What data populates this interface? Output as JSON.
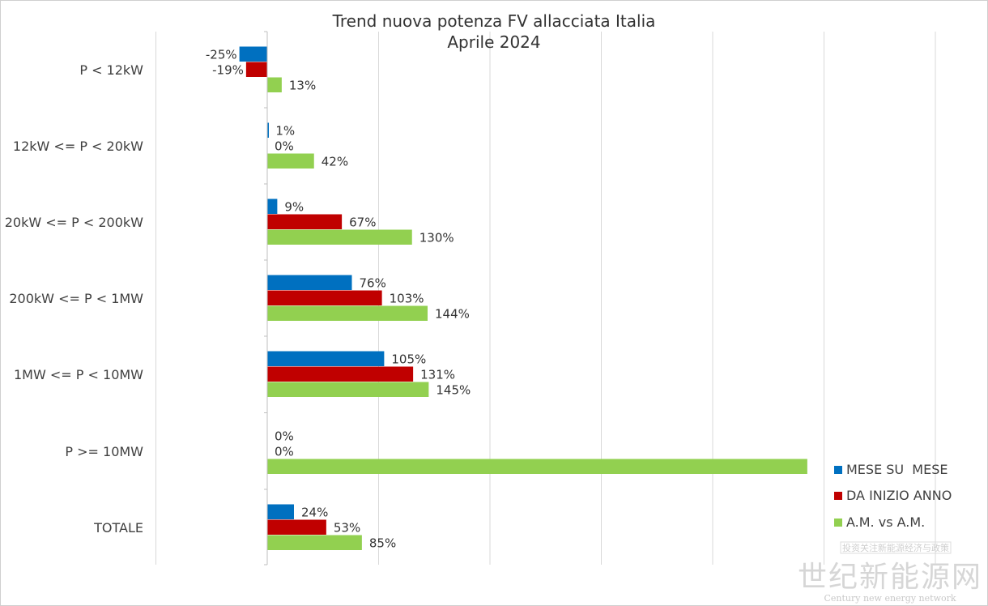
{
  "chart_data": {
    "type": "bar",
    "orientation": "horizontal",
    "title": [
      "Trend nuova potenza FV allacciata Italia",
      "Aprile 2024"
    ],
    "categories": [
      "P < 12kW",
      "12kW <= P < 20kW",
      "20kW <= P < 200kW",
      "200kW <= P < 1MW",
      "1MW <= P < 10MW",
      "P >= 10MW",
      "TOTALE"
    ],
    "series": [
      {
        "name": "MESE SU  MESE",
        "color": "#0070c0",
        "values": [
          -25,
          1,
          9,
          76,
          105,
          0,
          24
        ],
        "labels": [
          "-25%",
          "1%",
          "9%",
          "76%",
          "105%",
          "0%",
          "24%"
        ]
      },
      {
        "name": "DA INIZIO ANNO",
        "color": "#c00000",
        "values": [
          -19,
          0,
          67,
          103,
          131,
          0,
          53
        ],
        "labels": [
          "-19%",
          "0%",
          "67%",
          "103%",
          "131%",
          "0%",
          "53%"
        ]
      },
      {
        "name": "A.M. vs A.M.",
        "color": "#92d050",
        "values": [
          13,
          42,
          130,
          144,
          145,
          485,
          85
        ],
        "labels": [
          "13%",
          "42%",
          "130%",
          "144%",
          "145%",
          "",
          "85%"
        ]
      }
    ],
    "xlim": [
      -100,
      600
    ],
    "grid": true,
    "legend_position": "bottom-right"
  },
  "watermark": {
    "top_text": "投资关注新能源经济与政策",
    "main_text": "世纪新能源网",
    "sub_text": "Century new energy network"
  }
}
